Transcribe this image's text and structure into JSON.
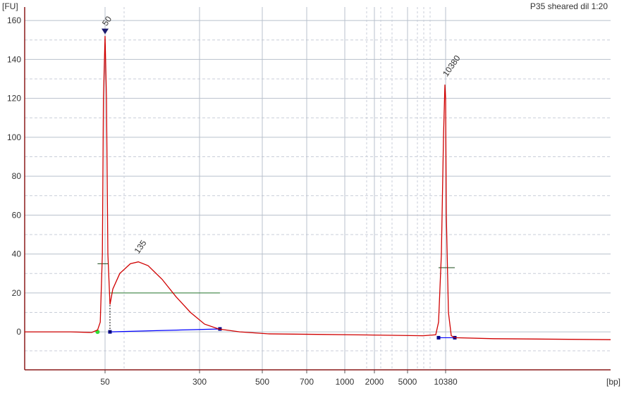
{
  "chart_data": {
    "type": "line",
    "title": "P35 sheared dil 1:20",
    "y_label": "[FU]",
    "x_label": "[bp]",
    "color": "#d00000",
    "x": [
      35,
      43.6,
      47.5,
      48.6,
      49.1,
      49.5,
      49.7,
      50,
      53.7,
      57.5,
      63,
      70.5,
      89,
      117,
      138,
      164,
      201,
      238,
      276,
      316,
      361,
      428,
      525,
      783,
      1738,
      7191,
      8985,
      9383,
      9782,
      10081,
      10280,
      10380,
      10408,
      10493,
      10606,
      10748,
      12304,
      17000
    ],
    "values": [
      0,
      0,
      -0.3,
      1,
      5,
      40,
      120,
      152,
      120,
      40,
      14,
      22,
      30,
      35,
      36,
      34,
      27,
      18,
      10,
      4,
      1.5,
      0,
      -1,
      -1.3,
      -1.6,
      -2,
      -1.5,
      5,
      40,
      100,
      127,
      120,
      60,
      10,
      -2,
      -3,
      -3.5,
      -4
    ],
    "xlim": [
      35,
      17000
    ],
    "xticks": [
      50,
      300,
      500,
      700,
      1000,
      2000,
      5000,
      10380
    ],
    "ylim": [
      -19.5,
      166.9
    ],
    "yticks": [
      0,
      20,
      40,
      60,
      80,
      100,
      120,
      140,
      160
    ],
    "grid": true,
    "annotations": [
      {
        "x": 50,
        "y": 154,
        "color": "#007000"
      },
      {
        "x": 135,
        "y": 37,
        "color": "#000000"
      },
      {
        "x": 10380,
        "y": 128,
        "color": "#8a2be2"
      }
    ],
    "region": {
      "x": [
        63,
        365
      ],
      "y": 20,
      "color": "#2e7d32"
    },
    "half_heights": [
      {
        "x": [
          48.6,
          57.5
        ],
        "y": 35
      },
      {
        "x": [
          9383,
          10748
        ],
        "y": 33
      }
    ],
    "baselines": [
      {
        "x": [
          63,
          365
        ],
        "y": [
          0,
          1.5
        ]
      },
      {
        "x": [
          9383,
          10748
        ],
        "y": [
          -3,
          -3
        ]
      }
    ]
  }
}
